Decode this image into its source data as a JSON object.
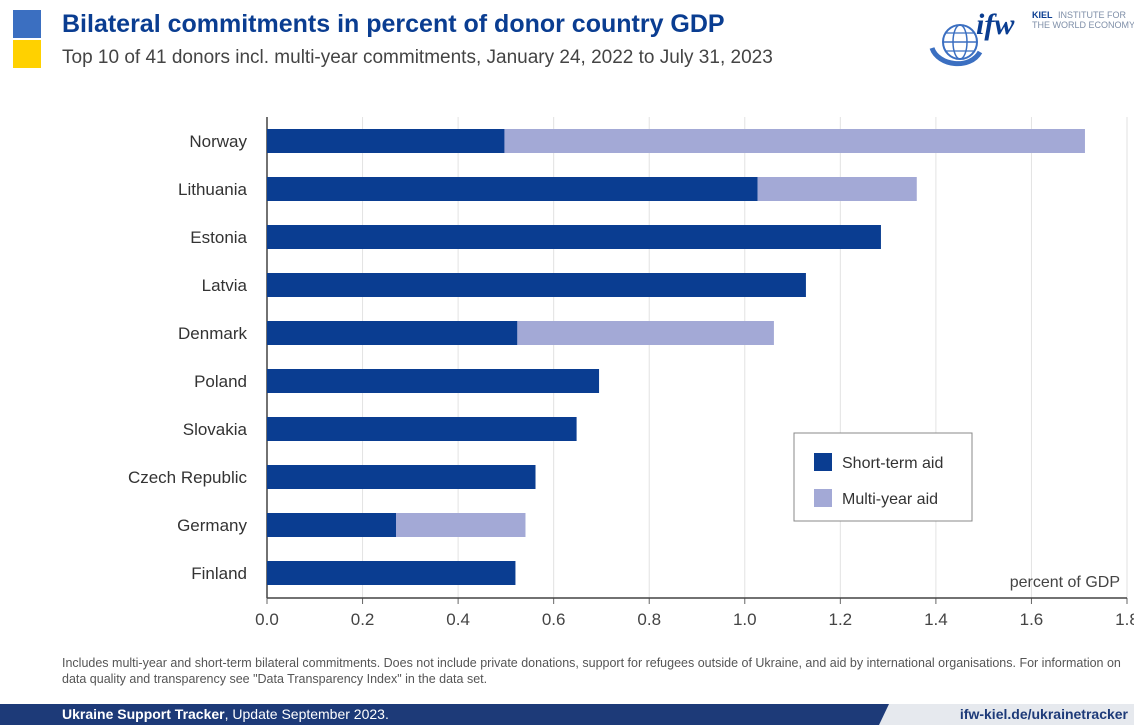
{
  "header": {
    "title": "Bilateral commitments in percent of donor country GDP",
    "subtitle": "Top 10 of 41 donors incl. multi-year commitments, January 24, 2022 to July 31, 2023"
  },
  "logo": {
    "mark": "ifw",
    "line1_bold": "KIEL",
    "line1_rest": "INSTITUTE FOR",
    "line2": "THE WORLD ECONOMY"
  },
  "chart_data": {
    "type": "bar",
    "orientation": "horizontal",
    "stacked": true,
    "categories": [
      "Norway",
      "Lithuania",
      "Estonia",
      "Latvia",
      "Denmark",
      "Poland",
      "Slovakia",
      "Czech Republic",
      "Germany",
      "Finland"
    ],
    "series": [
      {
        "name": "Short-term aid",
        "color": "#0a3d91",
        "values": [
          0.497,
          1.027,
          1.285,
          1.128,
          0.524,
          0.695,
          0.648,
          0.562,
          0.27,
          0.52
        ]
      },
      {
        "name": "Multi-year aid",
        "color": "#a3a9d6",
        "values": [
          1.215,
          0.333,
          0,
          0,
          0.537,
          0,
          0,
          0,
          0.271,
          0
        ]
      }
    ],
    "xlim": [
      0,
      1.8
    ],
    "xticks": [
      "0.0",
      "0.2",
      "0.4",
      "0.6",
      "0.8",
      "1.0",
      "1.2",
      "1.4",
      "1.6",
      "1.8"
    ],
    "x_unit_label": "percent of GDP",
    "legend_position": "lower-right",
    "grid": "vertical"
  },
  "footnote": "Includes multi-year and short-term bilateral commitments. Does not include private donations, support for refugees outside of Ukraine, and aid by international organisations. For information on data quality and transparency see \"Data Transparency Index\" in the data set.",
  "footer": {
    "brand": "Ukraine Support Tracker",
    "update": ", Update September 2023.",
    "url": "ifw-kiel.de/ukrainetracker"
  }
}
